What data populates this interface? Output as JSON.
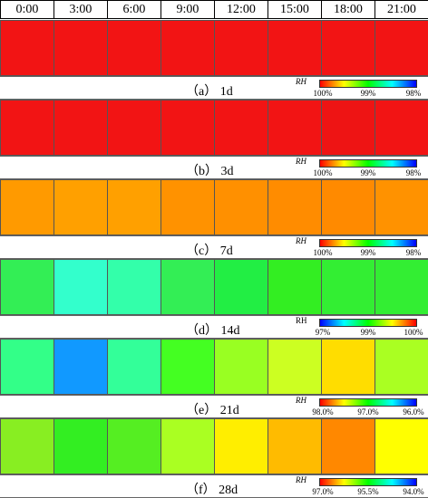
{
  "columns": [
    "0:00",
    "3:00",
    "6:00",
    "9:00",
    "12:00",
    "15:00",
    "18:00",
    "21:00"
  ],
  "panels": [
    {
      "label": "（a） 1d",
      "bar_title": "RH",
      "ticks": [
        "100%",
        "99%",
        "98%"
      ],
      "bar_colors": [
        "#ff0000",
        "#ffff00",
        "#00ff00",
        "#00ffff",
        "#0000ff"
      ],
      "cells": [
        "#f21414",
        "#f21414",
        "#f21414",
        "#f21414",
        "#f21414",
        "#f21414",
        "#f21414",
        "#f21414"
      ]
    },
    {
      "label": "（b） 3d",
      "bar_title": "RH",
      "ticks": [
        "100%",
        "99%",
        "98%"
      ],
      "bar_colors": [
        "#ff0000",
        "#ffff00",
        "#00ff00",
        "#00ffff",
        "#0000ff"
      ],
      "cells": [
        "#f21414",
        "#f21414",
        "#f21414",
        "#f21414",
        "#f21414",
        "#f21414",
        "#ee1414",
        "#f21414"
      ]
    },
    {
      "label": "（c） 7d",
      "bar_title": "RH",
      "ticks": [
        "100%",
        "99%",
        "98%"
      ],
      "bar_colors": [
        "#ff0000",
        "#ffff00",
        "#00ff00",
        "#00ffff",
        "#0000ff"
      ],
      "cells": [
        "#ff9a00",
        "#ffa000",
        "#ffa000",
        "#ff9200",
        "#ff9000",
        "#ff8c00",
        "#ff8a00",
        "#ff9200"
      ]
    },
    {
      "label": "（d） 14d",
      "bar_title": "RH",
      "ticks": [
        "97%",
        "99%",
        "100%"
      ],
      "bar_colors": [
        "#0000ff",
        "#00ffff",
        "#00ff00",
        "#ffff00",
        "#ff0000"
      ],
      "cells": [
        "#33ee55",
        "#33ffcc",
        "#33ffaa",
        "#33ee55",
        "#22ee44",
        "#33ee22",
        "#33ee33",
        "#33ee33"
      ]
    },
    {
      "label": "（e） 21d",
      "bar_title": "RH",
      "ticks": [
        "98.0%",
        "97.0%",
        "96.0%"
      ],
      "bar_colors": [
        "#ff0000",
        "#ffff00",
        "#00ff00",
        "#00ffff",
        "#0000ff"
      ],
      "cells": [
        "#33ff88",
        "#1199ff",
        "#33ff99",
        "#44ff22",
        "#99ff22",
        "#ccff22",
        "#ffdd00",
        "#aaff22"
      ]
    },
    {
      "label": "（f） 28d",
      "bar_title": "RH",
      "ticks": [
        "97.0%",
        "95.5%",
        "94.0%"
      ],
      "bar_colors": [
        "#ff0000",
        "#ffff00",
        "#00ff00",
        "#00ffff",
        "#0000ff"
      ],
      "cells": [
        "#88ee22",
        "#33ee22",
        "#55ee22",
        "#aaff22",
        "#ffee00",
        "#ffbb00",
        "#ff8800",
        "#ffff00"
      ]
    }
  ]
}
